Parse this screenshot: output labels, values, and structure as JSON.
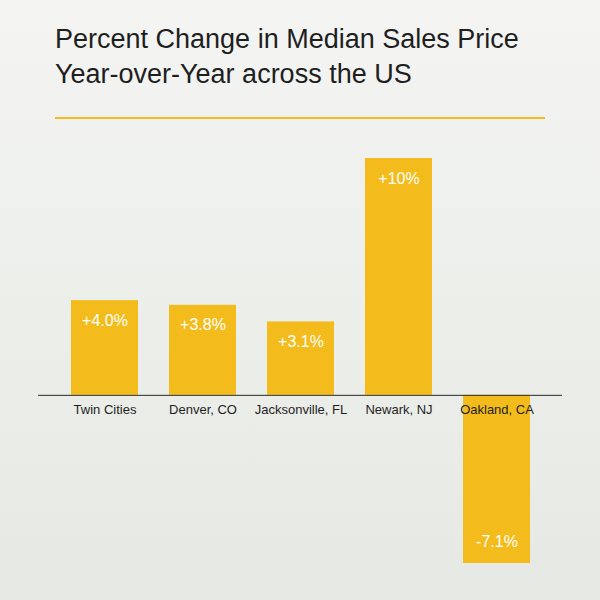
{
  "chart_data": {
    "type": "bar",
    "title": "Percent Change in Median Sales Price Year-over-Year across the US",
    "categories": [
      "Twin Cities",
      "Denver, CO",
      "Jacksonville, FL",
      "Newark, NJ",
      "Oakland, CA"
    ],
    "values": [
      4.0,
      3.8,
      3.1,
      10,
      -7.1
    ],
    "value_labels": [
      "+4.0%",
      "+3.8%",
      "+3.1%",
      "+10%",
      "-7.1%"
    ],
    "color": "#f3bc1c",
    "data_labels": true,
    "tick_labels": "x",
    "grid": false
  }
}
